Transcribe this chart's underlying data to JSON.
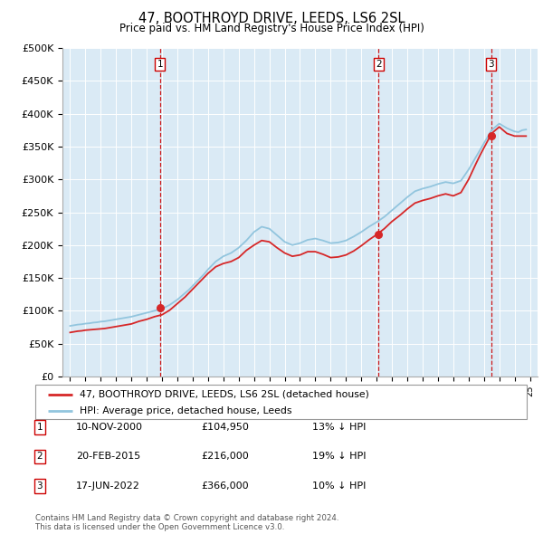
{
  "title": "47, BOOTHROYD DRIVE, LEEDS, LS6 2SL",
  "subtitle": "Price paid vs. HM Land Registry's House Price Index (HPI)",
  "ylabel_ticks": [
    "£0",
    "£50K",
    "£100K",
    "£150K",
    "£200K",
    "£250K",
    "£300K",
    "£350K",
    "£400K",
    "£450K",
    "£500K"
  ],
  "ylim": [
    0,
    500000
  ],
  "xlim_start": 1994.5,
  "xlim_end": 2025.5,
  "hpi_color": "#92c5de",
  "price_color": "#d62728",
  "vline_color": "#cc0000",
  "bg_color": "#daeaf5",
  "sale_dates": [
    2000.87,
    2015.13,
    2022.46
  ],
  "sale_prices": [
    104950,
    216000,
    366000
  ],
  "sale_labels": [
    "1",
    "2",
    "3"
  ],
  "sale_info": [
    [
      "1",
      "10-NOV-2000",
      "£104,950",
      "13% ↓ HPI"
    ],
    [
      "2",
      "20-FEB-2015",
      "£216,000",
      "19% ↓ HPI"
    ],
    [
      "3",
      "17-JUN-2022",
      "£366,000",
      "10% ↓ HPI"
    ]
  ],
  "legend_label_price": "47, BOOTHROYD DRIVE, LEEDS, LS6 2SL (detached house)",
  "legend_label_hpi": "HPI: Average price, detached house, Leeds",
  "footnote": "Contains HM Land Registry data © Crown copyright and database right 2024.\nThis data is licensed under the Open Government Licence v3.0.",
  "hpi_years": [
    1995.0,
    1995.25,
    1995.5,
    1995.75,
    1996.0,
    1996.25,
    1996.5,
    1996.75,
    1997.0,
    1997.25,
    1997.5,
    1997.75,
    1998.0,
    1998.25,
    1998.5,
    1998.75,
    1999.0,
    1999.25,
    1999.5,
    1999.75,
    2000.0,
    2000.25,
    2000.5,
    2000.75,
    2001.0,
    2001.25,
    2001.5,
    2001.75,
    2002.0,
    2002.25,
    2002.5,
    2002.75,
    2003.0,
    2003.25,
    2003.5,
    2003.75,
    2004.0,
    2004.25,
    2004.5,
    2004.75,
    2005.0,
    2005.25,
    2005.5,
    2005.75,
    2006.0,
    2006.25,
    2006.5,
    2006.75,
    2007.0,
    2007.25,
    2007.5,
    2007.75,
    2008.0,
    2008.25,
    2008.5,
    2008.75,
    2009.0,
    2009.25,
    2009.5,
    2009.75,
    2010.0,
    2010.25,
    2010.5,
    2010.75,
    2011.0,
    2011.25,
    2011.5,
    2011.75,
    2012.0,
    2012.25,
    2012.5,
    2012.75,
    2013.0,
    2013.25,
    2013.5,
    2013.75,
    2014.0,
    2014.25,
    2014.5,
    2014.75,
    2015.0,
    2015.25,
    2015.5,
    2015.75,
    2016.0,
    2016.25,
    2016.5,
    2016.75,
    2017.0,
    2017.25,
    2017.5,
    2017.75,
    2018.0,
    2018.25,
    2018.5,
    2018.75,
    2019.0,
    2019.25,
    2019.5,
    2019.75,
    2020.0,
    2020.25,
    2020.5,
    2020.75,
    2021.0,
    2021.25,
    2021.5,
    2021.75,
    2022.0,
    2022.25,
    2022.5,
    2022.75,
    2023.0,
    2023.25,
    2023.5,
    2023.75,
    2024.0,
    2024.25,
    2024.5,
    2024.75
  ],
  "hpi_values": [
    77000,
    78000,
    79000,
    79500,
    80500,
    81000,
    82000,
    82500,
    83500,
    84000,
    85000,
    86000,
    87000,
    88000,
    89000,
    90000,
    91000,
    92500,
    94000,
    95500,
    97000,
    98500,
    100000,
    101500,
    103000,
    106000,
    109000,
    113000,
    117000,
    122000,
    127000,
    132000,
    138000,
    144000,
    150000,
    156000,
    163000,
    169000,
    175000,
    179000,
    183000,
    185500,
    188000,
    192000,
    196000,
    201500,
    207000,
    213500,
    220000,
    224000,
    228000,
    226500,
    225000,
    220000,
    215000,
    210000,
    205000,
    202500,
    200000,
    201500,
    203000,
    205500,
    208000,
    209000,
    210000,
    208500,
    207000,
    205000,
    203000,
    203500,
    204000,
    205500,
    207000,
    210000,
    213000,
    216500,
    220000,
    224000,
    228000,
    231500,
    235000,
    239000,
    243000,
    248000,
    253000,
    258000,
    263000,
    268000,
    273000,
    277500,
    282000,
    284000,
    286000,
    287500,
    289000,
    291000,
    293000,
    294500,
    296000,
    295000,
    294000,
    296000,
    298000,
    306500,
    315000,
    325000,
    335000,
    345000,
    355000,
    365000,
    375000,
    380000,
    385000,
    381500,
    378000,
    375500,
    373000,
    372000,
    375000,
    376000
  ],
  "price_years": [
    1995.0,
    1995.25,
    1995.5,
    1995.75,
    1996.0,
    1996.25,
    1996.5,
    1996.75,
    1997.0,
    1997.25,
    1997.5,
    1997.75,
    1998.0,
    1998.25,
    1998.5,
    1998.75,
    1999.0,
    1999.25,
    1999.5,
    1999.75,
    2000.0,
    2000.25,
    2000.5,
    2000.75,
    2001.0,
    2001.25,
    2001.5,
    2001.75,
    2002.0,
    2002.25,
    2002.5,
    2002.75,
    2003.0,
    2003.25,
    2003.5,
    2003.75,
    2004.0,
    2004.25,
    2004.5,
    2004.75,
    2005.0,
    2005.25,
    2005.5,
    2005.75,
    2006.0,
    2006.25,
    2006.5,
    2006.75,
    2007.0,
    2007.25,
    2007.5,
    2007.75,
    2008.0,
    2008.25,
    2008.5,
    2008.75,
    2009.0,
    2009.25,
    2009.5,
    2009.75,
    2010.0,
    2010.25,
    2010.5,
    2010.75,
    2011.0,
    2011.25,
    2011.5,
    2011.75,
    2012.0,
    2012.25,
    2012.5,
    2012.75,
    2013.0,
    2013.25,
    2013.5,
    2013.75,
    2014.0,
    2014.25,
    2014.5,
    2014.75,
    2015.0,
    2015.25,
    2015.5,
    2015.75,
    2016.0,
    2016.25,
    2016.5,
    2016.75,
    2017.0,
    2017.25,
    2017.5,
    2017.75,
    2018.0,
    2018.25,
    2018.5,
    2018.75,
    2019.0,
    2019.25,
    2019.5,
    2019.75,
    2020.0,
    2020.25,
    2020.5,
    2020.75,
    2021.0,
    2021.25,
    2021.5,
    2021.75,
    2022.0,
    2022.25,
    2022.5,
    2022.75,
    2023.0,
    2023.25,
    2023.5,
    2023.75,
    2024.0,
    2024.25,
    2024.5,
    2024.75
  ],
  "price_values": [
    67000,
    68000,
    69000,
    69500,
    70500,
    71000,
    71500,
    72000,
    72500,
    73000,
    74000,
    75000,
    76000,
    77000,
    78000,
    79000,
    80000,
    82000,
    84000,
    85500,
    87000,
    89000,
    91000,
    92500,
    94000,
    97500,
    101000,
    106000,
    111000,
    116000,
    121000,
    127000,
    133000,
    139000,
    145000,
    151000,
    157000,
    162000,
    167000,
    169500,
    172000,
    173500,
    175000,
    178000,
    181000,
    186500,
    192000,
    196000,
    200000,
    203500,
    207000,
    206000,
    205000,
    200500,
    196000,
    192000,
    188000,
    185500,
    183000,
    184000,
    185000,
    187500,
    190000,
    190000,
    190000,
    188000,
    186000,
    183500,
    181000,
    181500,
    182000,
    183500,
    185000,
    188000,
    191000,
    195000,
    199000,
    203500,
    208000,
    212000,
    216000,
    220500,
    225000,
    230500,
    236000,
    240500,
    245000,
    250000,
    255000,
    259500,
    264000,
    266000,
    268000,
    269500,
    271000,
    273000,
    275000,
    276500,
    278000,
    276500,
    275000,
    277500,
    280000,
    290000,
    300000,
    312500,
    325000,
    337000,
    348000,
    359000,
    370000,
    375000,
    380000,
    375000,
    370000,
    368000,
    366000,
    366000,
    366000,
    366000
  ]
}
